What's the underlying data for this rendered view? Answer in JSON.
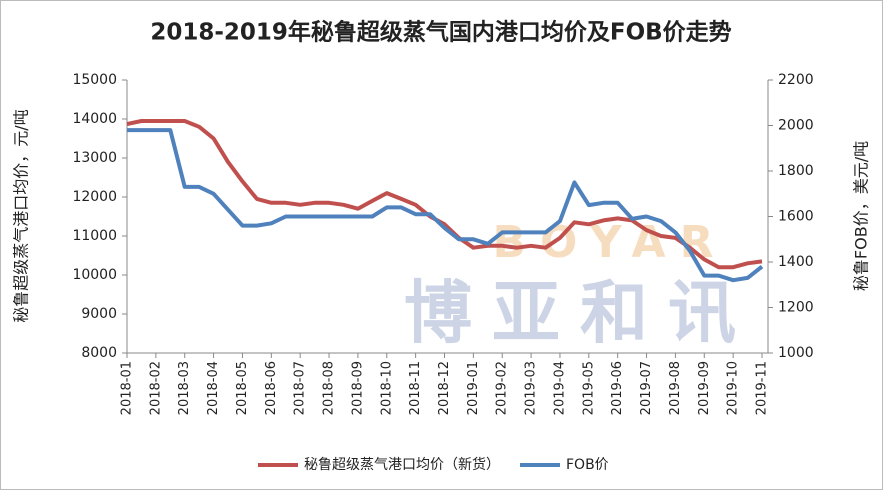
{
  "chart_data": {
    "type": "line",
    "title": "2018-2019年秘鲁超级蒸气国内港口均价及FOB价走势",
    "y_label": "秘鲁超级蒸气港口均价，元/吨",
    "y2_label": "秘鲁FOB价，美元/吨",
    "watermark": "博亚和讯",
    "watermark_en": "BOYAR",
    "categories": [
      "2018-01",
      null,
      "2018-02",
      null,
      "2018-03",
      null,
      "2018-04",
      null,
      "2018-05",
      null,
      "2018-06",
      null,
      "2018-07",
      null,
      "2018-08",
      null,
      "2018-09",
      null,
      "2018-10",
      null,
      "2018-11",
      null,
      "2018-12",
      null,
      "2019-01",
      null,
      "2019-02",
      null,
      "2019-03",
      null,
      "2019-04",
      null,
      "2019-05",
      null,
      "2019-06",
      null,
      "2019-07",
      null,
      "2019-08",
      null,
      "2019-09",
      null,
      "2019-10",
      null,
      "2019-11"
    ],
    "series": [
      {
        "name": "秘鲁超级蒸气港口均价（新货）",
        "color": "#c0504d",
        "values": [
          13870,
          13950,
          13950,
          13950,
          13950,
          13800,
          13500,
          12900,
          12400,
          11950,
          11850,
          11850,
          11800,
          11850,
          11850,
          11800,
          11700,
          11900,
          12100,
          11950,
          11800,
          11500,
          11300,
          10950,
          10700,
          10750,
          10750,
          10700,
          10750,
          10700,
          10950,
          11350,
          11300,
          11400,
          11450,
          11400,
          11150,
          11000,
          10950,
          10700,
          10400,
          10200,
          10200,
          10300,
          10350
        ]
      },
      {
        "name": "FOB价",
        "color": "#4f81bd",
        "axis": "y2",
        "values": [
          1980,
          1980,
          1980,
          1980,
          1730,
          1730,
          1700,
          1630,
          1560,
          1560,
          1570,
          1600,
          1600,
          1600,
          1600,
          1600,
          1600,
          1600,
          1640,
          1640,
          1610,
          1610,
          1550,
          1500,
          1500,
          1480,
          1530,
          1530,
          1530,
          1530,
          1580,
          1750,
          1650,
          1660,
          1660,
          1590,
          1600,
          1580,
          1530,
          1450,
          1340,
          1340,
          1320,
          1330,
          1380
        ]
      }
    ],
    "ylim": [
      8000,
      15000
    ],
    "yticks": [
      8000,
      9000,
      10000,
      11000,
      12000,
      13000,
      14000,
      15000
    ],
    "y2lim": [
      1000,
      2200
    ],
    "y2ticks": [
      1000,
      1200,
      1400,
      1600,
      1800,
      2000,
      2200
    ],
    "legend": "bottom"
  }
}
